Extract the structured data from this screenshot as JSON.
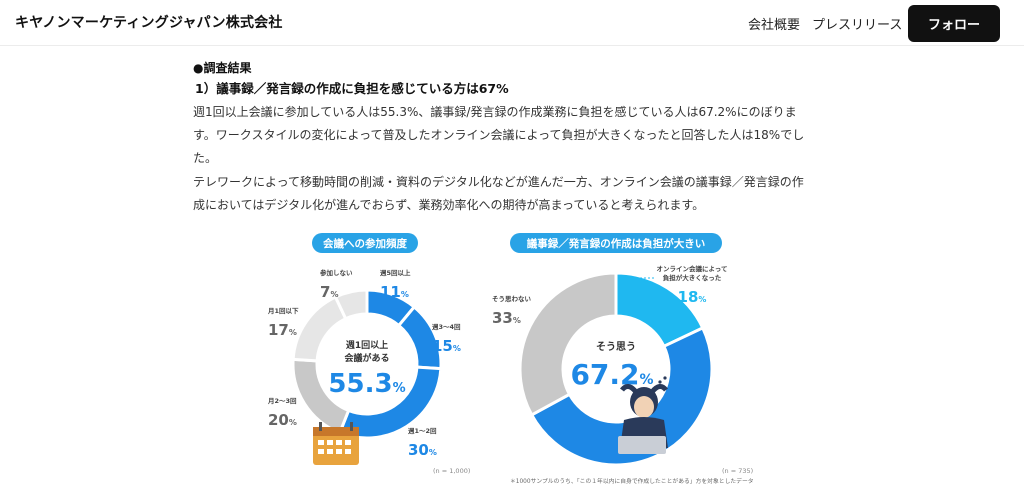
{
  "header": {
    "brand": "キヤノンマーケティングジャパン株式会社",
    "nav": [
      "会社概要",
      "プレスリリース"
    ],
    "follow_label": "フォロー"
  },
  "article": {
    "result_heading": "●調査結果",
    "sub_heading": "1）議事録／発言録の作成に負担を感じている方は67%",
    "para1_lines": [
      "週1回以上会議に参加している人は55.3%、議事録/発言録の作成業務に負担を感じている人は67.2%にのぼりま",
      "す。ワークスタイルの変化によって普及したオンライン会議によって負担が大きくなったと回答した人は18%でし",
      "た。"
    ],
    "para2_lines": [
      "テレワークによって移動時間の削減・資料のデジタル化などが進んだ一方、オンライン会議の議事録／発言録の作",
      "成においてはデジタル化が進んでおらず、業務効率化への期待が高まっていると考えられます。"
    ]
  },
  "colors": {
    "blue": "#1e88e5",
    "dark_blue": "#1976d2",
    "cyan": "#1fb8f0",
    "light_gray": "#e6e6e6",
    "mid_gray": "#c8c8c8",
    "dark_gray": "#aaaaaa",
    "title_pill": "#29a3e6"
  },
  "chart_data": [
    {
      "type": "pie",
      "title": "会議への参加頻度",
      "center_label": [
        "週1回以上",
        "会議がある"
      ],
      "center_value": "55.3",
      "center_unit": "%",
      "note": "(n = 1,000)",
      "slices": [
        {
          "label": "週5回以上",
          "value": 11
        },
        {
          "label": "週3〜4回",
          "value": 15
        },
        {
          "label": "週1〜2回",
          "value": 30
        },
        {
          "label": "月2〜3回",
          "value": 20
        },
        {
          "label": "月1回以下",
          "value": 17
        },
        {
          "label": "参加しない",
          "value": 7
        }
      ]
    },
    {
      "type": "pie",
      "title": "議事録／発言録の作成は負担が大きい",
      "center_label": [
        "そう思う"
      ],
      "center_value": "67.2",
      "center_unit": "%",
      "note": "(n = 735)",
      "footnote": "＊1000サンプルのうち、「この１年以内に自身で作成したことがある」方を対象としたデータ",
      "slices": [
        {
          "label": "オンライン会議によって負担が大きくなった",
          "value": 18
        },
        {
          "label": "そう思う",
          "value": 49.2
        },
        {
          "label": "そう思わない",
          "value": 33
        }
      ],
      "callout_lines": [
        "オンライン会議によって",
        "負担が大きくなった"
      ]
    }
  ]
}
